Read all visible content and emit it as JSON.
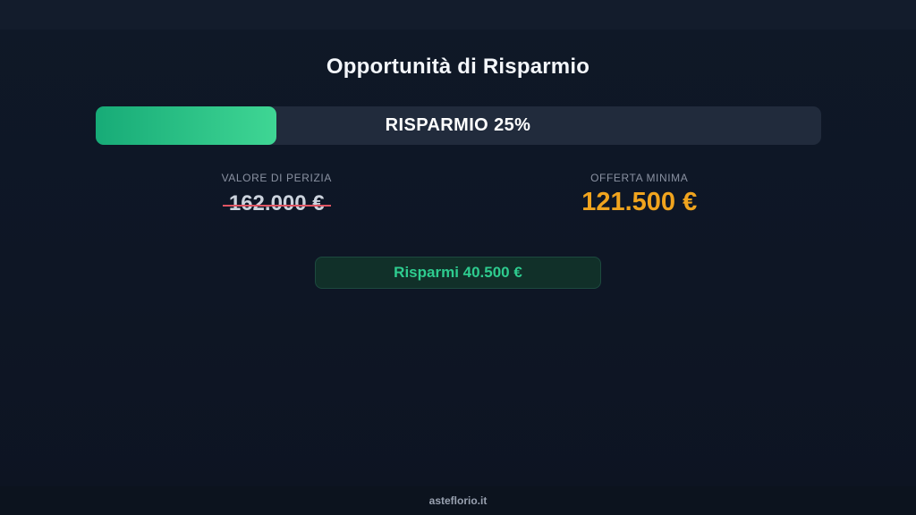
{
  "page": {
    "title": "Opportunità di Risparmio",
    "footer_text": "asteflorio.it"
  },
  "progress": {
    "label": "RISPARMIO 25%",
    "percent": 25,
    "fill_style": "width:25%",
    "fill_color_start": "#17ab77",
    "fill_color_end": "#3fd694",
    "track_color": "#212b3c"
  },
  "values": {
    "appraisal": {
      "label": "VALORE DI PERIZIA",
      "amount": "162.000 €",
      "struck": true,
      "strike_color": "#e05563",
      "text_color": "#ccd3dd"
    },
    "minimum_offer": {
      "label": "OFFERTA MINIMA",
      "amount": "121.500 €",
      "text_color": "#f0a41e"
    }
  },
  "savings_badge": {
    "label": "Risparmi 40.500 €",
    "text_color": "#2ecc8f",
    "background": "#113029"
  },
  "colors": {
    "page_background": "#0e1625",
    "top_strip": "#131c2c",
    "footer_background": "#0c131e",
    "title_text": "#f3f6fa",
    "label_gray": "#8a92a2"
  }
}
